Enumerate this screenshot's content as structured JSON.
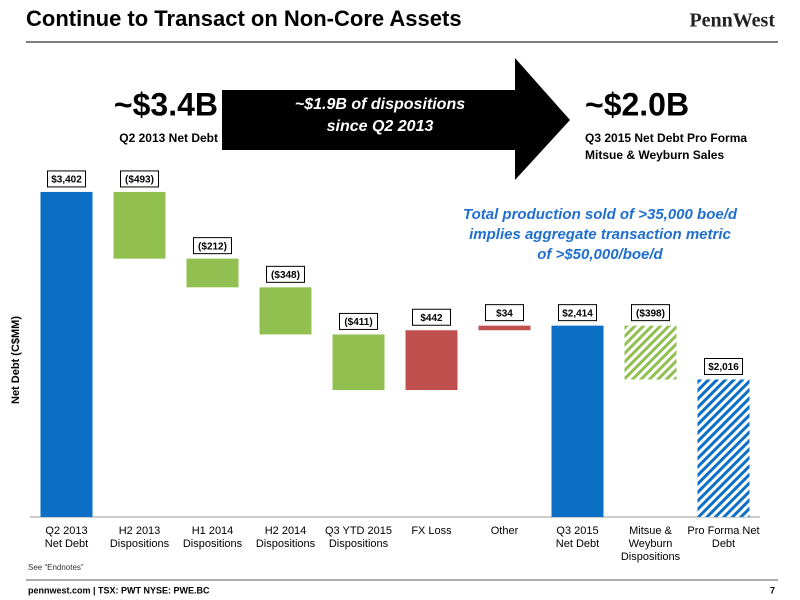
{
  "chart_data": {
    "type": "waterfall",
    "title": "Continue to Transact on Non-Core Assets",
    "logo": "PennWest",
    "start_headline": "~$3.4B",
    "start_caption": "Q2 2013 Net Debt",
    "arrow_text": [
      "~$1.9B of dispositions",
      "since Q2 2013"
    ],
    "end_headline": "~$2.0B",
    "end_caption": [
      "Q3 2015 Net Debt Pro Forma",
      "Mitsue & Weyburn Sales"
    ],
    "annotation": [
      "Total production sold of >35,000 boe/d",
      "implies aggregate transaction metric",
      "of >$50,000/boe/d"
    ],
    "y_label": "Net Debt (C$MM)",
    "categories": [
      [
        "Q2 2013",
        "Net Debt"
      ],
      [
        "H2 2013",
        "Dispositions"
      ],
      [
        "H1 2014",
        "Dispositions"
      ],
      [
        "H2 2014",
        "Dispositions"
      ],
      [
        "Q3 YTD 2015",
        "Dispositions"
      ],
      [
        "FX Loss"
      ],
      [
        "Other"
      ],
      [
        "Q3 2015",
        "Net Debt"
      ],
      [
        "Mitsue &",
        "Weyburn",
        "Dispositions"
      ],
      [
        "Pro Forma Net",
        "Debt"
      ]
    ],
    "values": [
      3402,
      -493,
      -212,
      -348,
      -411,
      442,
      34,
      2414,
      -398,
      2016
    ],
    "value_labels": [
      "$3,402",
      "($493)",
      "($212)",
      "($348)",
      "($411)",
      "$442",
      "$34",
      "$2,414",
      "($398)",
      "$2,016"
    ],
    "total_bars": [
      true,
      false,
      false,
      false,
      false,
      false,
      false,
      true,
      false,
      true
    ],
    "colors": [
      "#0b6fc6",
      "#92c050",
      "#92c050",
      "#92c050",
      "#92c050",
      "#c0504d",
      "#c0504d",
      "#0b6fc6",
      "#92c050",
      "#0b6fc6"
    ],
    "hatched": [
      false,
      false,
      false,
      false,
      false,
      false,
      false,
      false,
      true,
      true
    ],
    "ylim": [
      1000,
      4000
    ],
    "note": "See “Endnotes”",
    "footer": "pennwest.com | TSX: PWT  NYSE: PWE.BC",
    "page_number": "7"
  }
}
